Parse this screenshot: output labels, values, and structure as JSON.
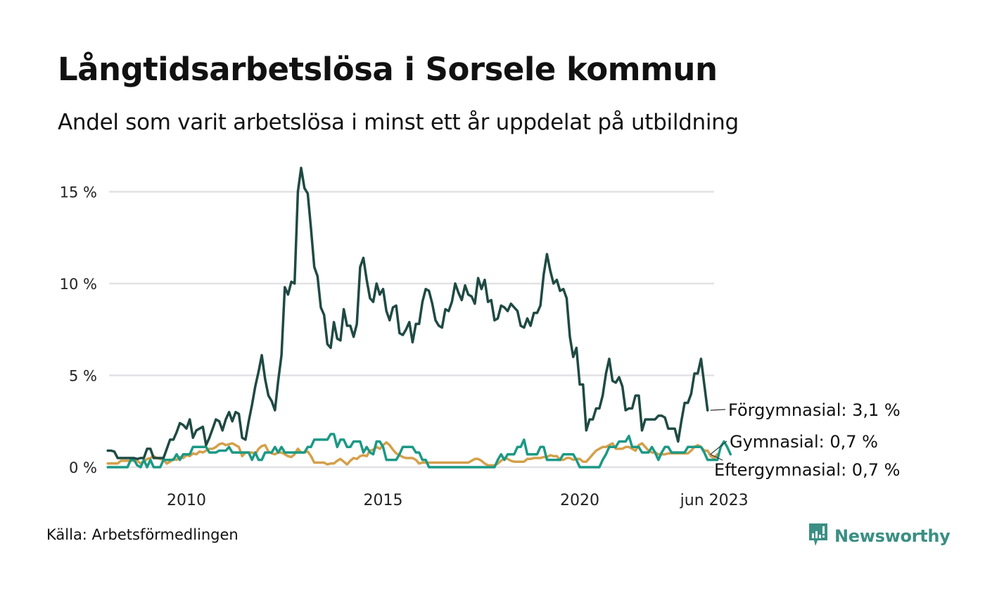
{
  "header": {
    "title": "Långtidsarbetslösa i Sorsele kommun",
    "subtitle": "Andel som varit arbetslösa i minst ett år uppdelat på utbildning"
  },
  "footer": {
    "source": "Källa: Arbetsförmedlingen",
    "brand": "Newsworthy",
    "brand_icon": "newsworthy-logo-icon",
    "brand_color": "#3b8f84"
  },
  "chart_data": {
    "type": "line",
    "title": "Långtidsarbetslösa i Sorsele kommun",
    "subtitle": "Andel som varit arbetslösa i minst ett år uppdelat på utbildning",
    "xlabel": "",
    "ylabel": "",
    "x_start": "2008-01",
    "x_end": "2023-06",
    "frequency": "monthly",
    "x_ticks": [
      {
        "label": "2010",
        "year": 2010.0
      },
      {
        "label": "2015",
        "year": 2015.0
      },
      {
        "label": "2020",
        "year": 2020.0
      },
      {
        "label": "jun 2023",
        "year": 2023.42
      }
    ],
    "y_ticks": [
      {
        "label": "0 %",
        "value": 0
      },
      {
        "label": "5 %",
        "value": 5
      },
      {
        "label": "10 %",
        "value": 10
      },
      {
        "label": "15 %",
        "value": 15
      }
    ],
    "ylim": [
      0,
      16.5
    ],
    "grid": true,
    "legend": "direct-labels-right",
    "series": [
      {
        "name": "Förgymnasial",
        "end_label": "Förgymnasial: 3,1 %",
        "color": "#1f4a43",
        "values": [
          0.9,
          0.9,
          0.85,
          0.5,
          0.5,
          0.5,
          0.5,
          0.5,
          0.5,
          0.45,
          0.5,
          0.5,
          1.0,
          1.0,
          0.5,
          0.5,
          0.5,
          0.5,
          1.0,
          1.5,
          1.5,
          1.9,
          2.4,
          2.3,
          2.1,
          2.6,
          1.6,
          2.0,
          2.1,
          2.2,
          1.2,
          1.6,
          2.1,
          2.6,
          2.5,
          2.0,
          2.6,
          3.0,
          2.5,
          3.0,
          2.9,
          1.6,
          1.5,
          2.5,
          3.4,
          4.4,
          5.2,
          6.1,
          4.8,
          3.9,
          3.6,
          3.1,
          4.7,
          6.1,
          9.8,
          9.4,
          10.1,
          10.0,
          15.0,
          16.3,
          15.2,
          14.9,
          13.0,
          10.9,
          10.4,
          8.7,
          8.3,
          6.7,
          6.5,
          7.9,
          7.0,
          6.9,
          8.6,
          7.7,
          7.7,
          7.1,
          7.8,
          10.9,
          11.4,
          10.2,
          9.2,
          9.0,
          10.0,
          9.4,
          9.7,
          8.5,
          8.0,
          8.7,
          8.8,
          7.3,
          7.2,
          7.5,
          7.9,
          6.8,
          7.8,
          7.8,
          9.0,
          9.7,
          9.6,
          8.9,
          8.0,
          7.7,
          7.6,
          8.6,
          8.5,
          9.0,
          10.0,
          9.5,
          9.1,
          9.9,
          9.4,
          9.3,
          8.9,
          10.3,
          9.7,
          10.2,
          9.0,
          9.1,
          8.0,
          8.1,
          8.8,
          8.7,
          8.5,
          8.9,
          8.7,
          8.5,
          7.7,
          7.6,
          8.1,
          7.7,
          8.4,
          8.4,
          8.8,
          10.5,
          11.6,
          10.7,
          10.0,
          10.2,
          9.6,
          9.7,
          9.2,
          7.1,
          6.0,
          6.5,
          4.5,
          4.5,
          2.0,
          2.6,
          2.6,
          3.2,
          3.2,
          3.9,
          5.1,
          5.9,
          4.7,
          4.6,
          4.9,
          4.4,
          3.1,
          3.2,
          3.2,
          3.9,
          3.9,
          2.0,
          2.6,
          2.6,
          2.6,
          2.6,
          2.8,
          2.8,
          2.7,
          2.1,
          2.1,
          2.1,
          1.4,
          2.5,
          3.5,
          3.5,
          4.0,
          5.1,
          5.1,
          5.9,
          4.5,
          3.1
        ]
      },
      {
        "name": "Gymnasial",
        "end_label": "Gymnasial: 0,7 %",
        "color": "#1b9985",
        "values": [
          0.0,
          0.0,
          0.0,
          0.0,
          0.0,
          0.0,
          0.0,
          0.4,
          0.4,
          0.1,
          0.0,
          0.4,
          0.0,
          0.4,
          0.0,
          0.0,
          0.0,
          0.4,
          0.4,
          0.4,
          0.4,
          0.7,
          0.4,
          0.7,
          0.7,
          0.7,
          1.1,
          1.1,
          1.1,
          1.1,
          1.1,
          0.8,
          0.8,
          0.8,
          0.9,
          0.9,
          0.9,
          1.1,
          0.8,
          0.8,
          0.8,
          0.8,
          0.8,
          0.8,
          0.4,
          0.8,
          0.4,
          0.4,
          0.8,
          0.8,
          0.8,
          1.1,
          0.8,
          1.1,
          0.8,
          0.8,
          0.8,
          0.8,
          0.8,
          0.8,
          0.8,
          1.1,
          1.1,
          1.5,
          1.5,
          1.5,
          1.5,
          1.5,
          1.8,
          1.8,
          1.1,
          1.5,
          1.5,
          1.1,
          1.1,
          1.4,
          1.4,
          1.4,
          0.8,
          1.1,
          0.8,
          0.7,
          1.4,
          1.4,
          1.1,
          0.4,
          0.4,
          0.4,
          0.4,
          0.7,
          1.1,
          1.1,
          1.1,
          1.1,
          0.8,
          0.8,
          0.4,
          0.4,
          0.0,
          0.0,
          0.0,
          0.0,
          0.0,
          0.0,
          0.0,
          0.0,
          0.0,
          0.0,
          0.0,
          0.0,
          0.0,
          0.0,
          0.0,
          0.0,
          0.0,
          0.0,
          0.0,
          0.0,
          0.0,
          0.4,
          0.7,
          0.4,
          0.7,
          0.7,
          0.7,
          1.1,
          1.1,
          1.5,
          0.7,
          0.7,
          0.7,
          0.7,
          1.1,
          1.1,
          0.4,
          0.4,
          0.4,
          0.4,
          0.4,
          0.7,
          0.7,
          0.7,
          0.7,
          0.4,
          0.0,
          0.0,
          0.0,
          0.0,
          0.0,
          0.0,
          0.0,
          0.4,
          0.7,
          1.1,
          1.1,
          1.1,
          1.4,
          1.4,
          1.4,
          1.7,
          1.1,
          1.1,
          1.1,
          0.8,
          0.8,
          0.8,
          1.1,
          0.8,
          0.4,
          0.8,
          1.1,
          1.1,
          0.8,
          0.8,
          0.8,
          0.8,
          0.8,
          1.1,
          1.1,
          1.1,
          1.1,
          1.1,
          0.8,
          0.4,
          0.4,
          0.4,
          0.4,
          1.1,
          1.4,
          1.1,
          0.7
        ]
      },
      {
        "name": "Eftergymnasial",
        "end_label": "Eftergymnasial: 0,7 %",
        "color": "#d4a04a",
        "values": [
          0.2,
          0.2,
          0.2,
          0.2,
          0.35,
          0.35,
          0.35,
          0.35,
          0.35,
          0.35,
          0.2,
          0.3,
          0.45,
          0.5,
          0.6,
          0.5,
          0.45,
          0.4,
          0.2,
          0.3,
          0.45,
          0.4,
          0.55,
          0.5,
          0.65,
          0.6,
          0.75,
          0.7,
          0.85,
          0.8,
          0.9,
          1.0,
          1.0,
          1.1,
          1.25,
          1.3,
          1.2,
          1.25,
          1.3,
          1.2,
          1.1,
          0.6,
          0.8,
          0.8,
          0.8,
          0.7,
          1.0,
          1.15,
          1.2,
          0.85,
          0.75,
          0.7,
          0.8,
          0.8,
          0.7,
          0.6,
          0.55,
          0.7,
          1.0,
          0.8,
          0.8,
          0.85,
          0.6,
          0.25,
          0.25,
          0.25,
          0.25,
          0.15,
          0.2,
          0.2,
          0.35,
          0.45,
          0.3,
          0.15,
          0.35,
          0.5,
          0.45,
          0.6,
          0.65,
          0.6,
          0.9,
          0.95,
          1.1,
          1.0,
          1.2,
          1.35,
          1.2,
          0.95,
          0.75,
          0.65,
          0.55,
          0.5,
          0.5,
          0.5,
          0.4,
          0.2,
          0.25,
          0.25,
          0.25,
          0.25,
          0.25,
          0.25,
          0.25,
          0.25,
          0.25,
          0.25,
          0.25,
          0.25,
          0.25,
          0.25,
          0.25,
          0.35,
          0.45,
          0.45,
          0.35,
          0.2,
          0.1,
          0.1,
          0.1,
          0.2,
          0.35,
          0.5,
          0.45,
          0.35,
          0.3,
          0.3,
          0.3,
          0.3,
          0.45,
          0.45,
          0.5,
          0.5,
          0.5,
          0.55,
          0.55,
          0.65,
          0.6,
          0.6,
          0.4,
          0.4,
          0.5,
          0.5,
          0.4,
          0.45,
          0.45,
          0.3,
          0.3,
          0.5,
          0.7,
          0.9,
          1.0,
          1.1,
          1.1,
          1.2,
          1.3,
          1.0,
          1.0,
          1.0,
          1.1,
          1.1,
          1.0,
          0.9,
          1.2,
          1.3,
          1.1,
          0.9,
          0.8,
          0.8,
          0.7,
          0.7,
          0.7,
          0.75,
          0.75,
          0.75,
          0.75,
          0.75,
          0.75,
          0.75,
          0.9,
          1.1,
          1.2,
          1.1,
          0.9,
          0.9,
          0.6,
          0.5,
          0.7
        ]
      }
    ]
  }
}
